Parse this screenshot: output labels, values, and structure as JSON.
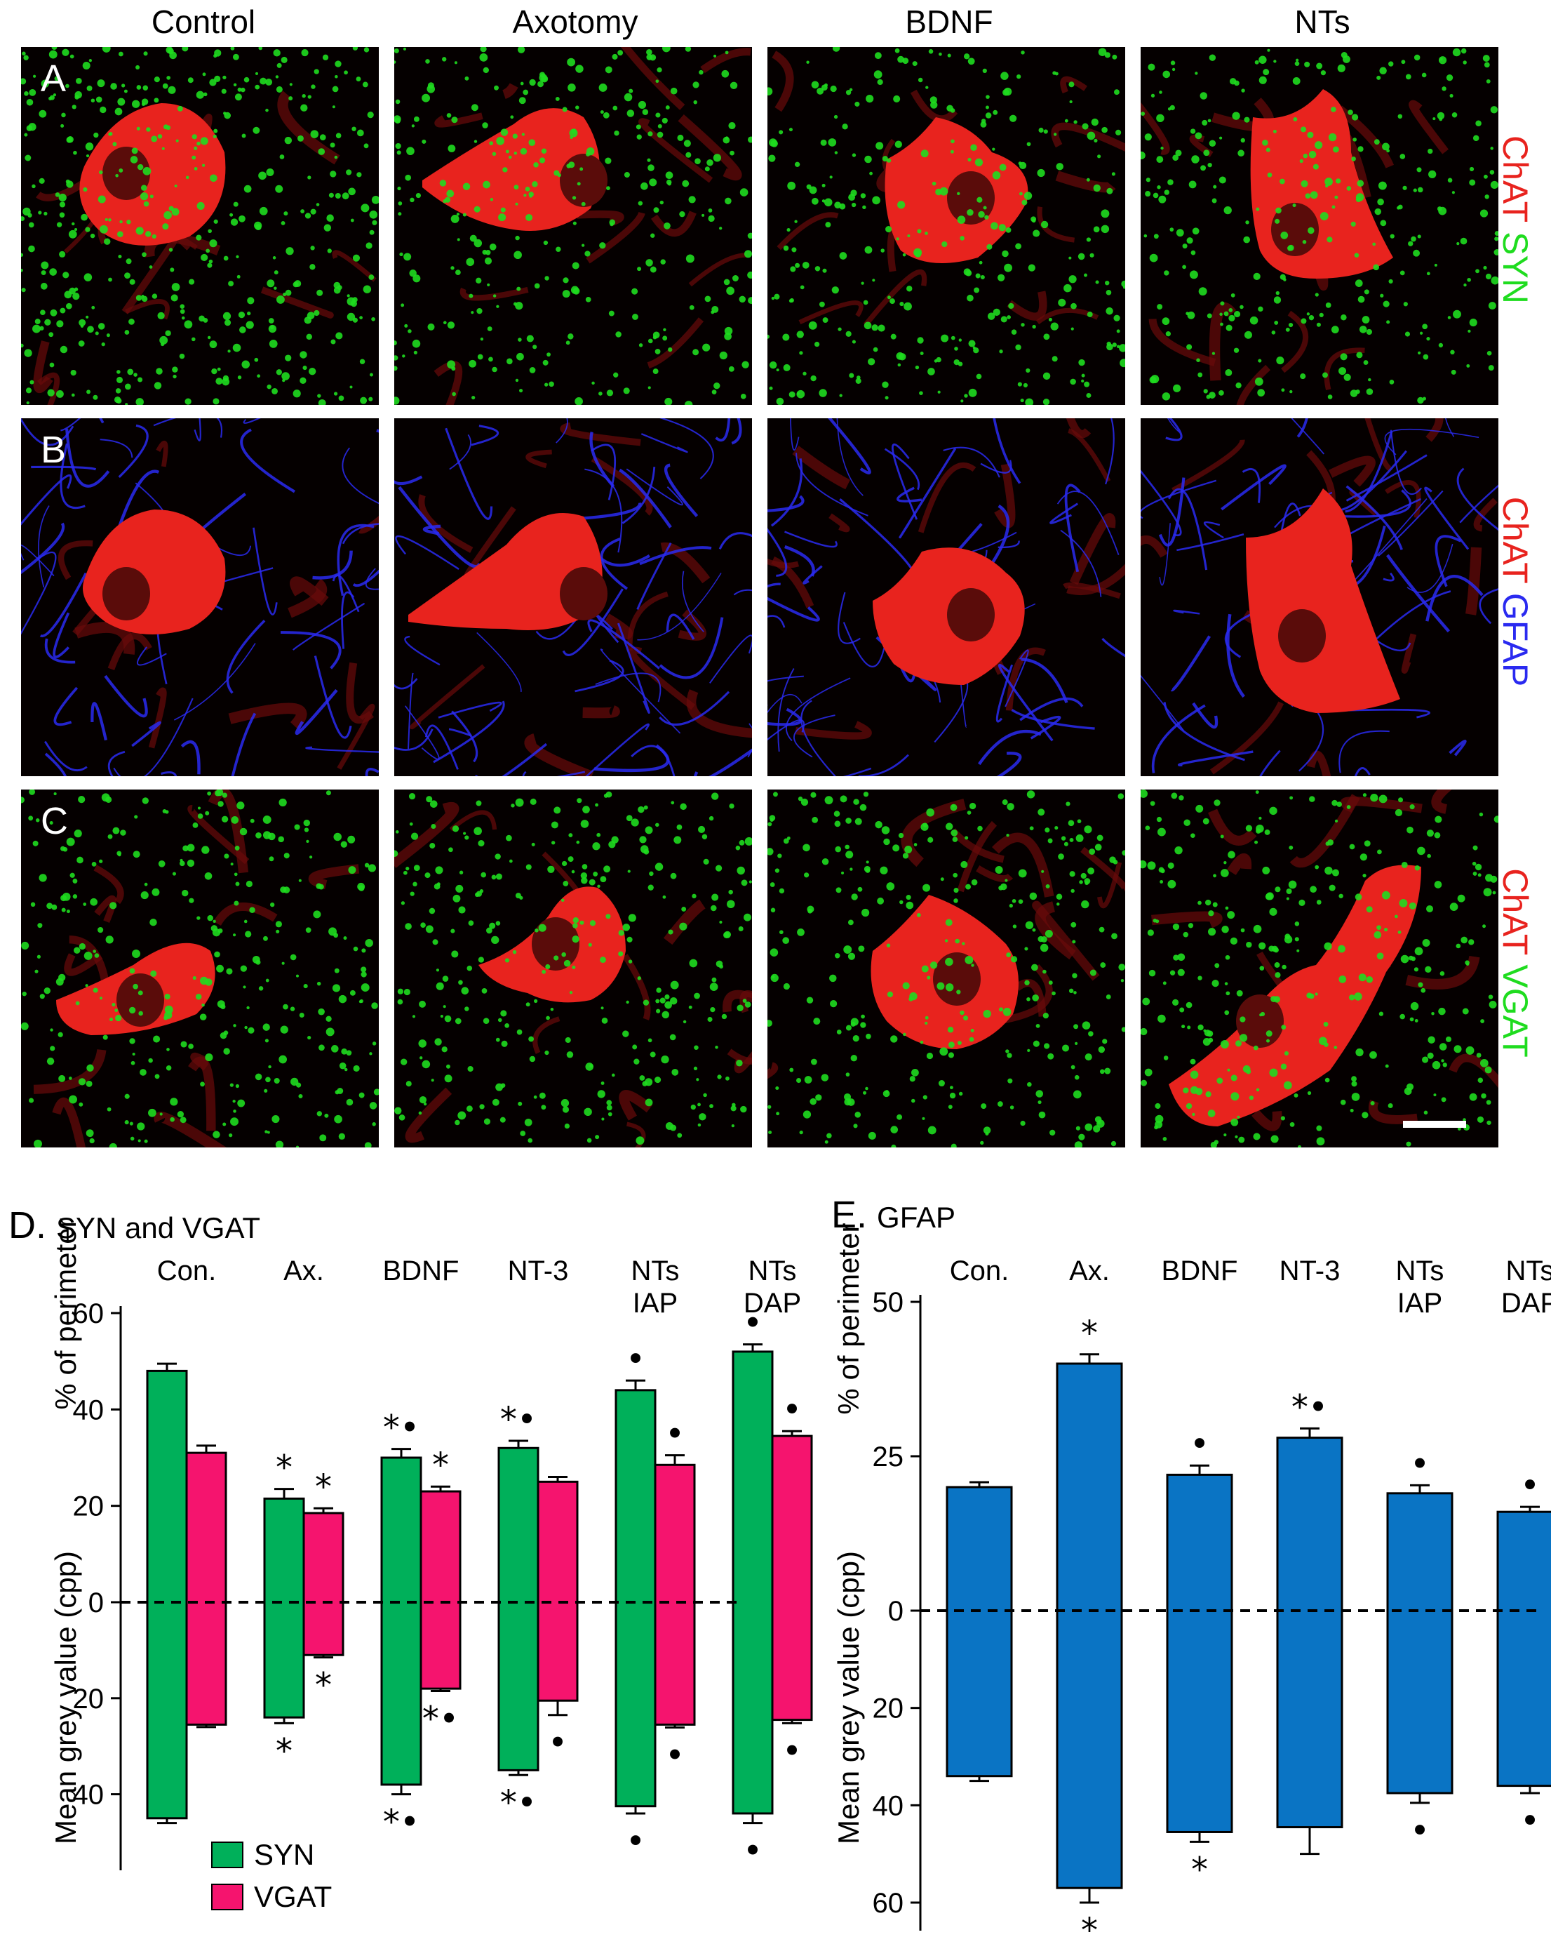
{
  "columns": [
    "Control",
    "Axotomy",
    "BDNF",
    "NTs"
  ],
  "rows": [
    {
      "letter": "A",
      "marker_primary": "ChAT",
      "marker_secondary": "SYN",
      "secondary_color": "#1fdc1f"
    },
    {
      "letter": "B",
      "marker_primary": "ChAT",
      "marker_secondary": "GFAP",
      "secondary_color": "#2a2af0"
    },
    {
      "letter": "C",
      "marker_primary": "ChAT",
      "marker_secondary": "VGAT",
      "secondary_color": "#1fdc1f"
    }
  ],
  "colors": {
    "chat_red": "#e8231e",
    "syn_green": "#00b05a",
    "vgat_pink": "#f5146e",
    "gfap_blue": "#0a74c4"
  },
  "chart_data": [
    {
      "type": "bar",
      "panel_letter": "D.",
      "title": "SYN and VGAT",
      "categories": [
        "Con.",
        "Ax.",
        "BDNF",
        "NT-3",
        "NTs\nIAP",
        "NTs\nDAP"
      ],
      "ylabel_top": "% of perimeter",
      "ylabel_bottom": "Mean grey value (cpp)",
      "ylim_top": [
        0,
        60
      ],
      "ylim_bottom": [
        0,
        50
      ],
      "yticks_top": [
        "60",
        "40",
        "20",
        "0"
      ],
      "yticks_bottom": [
        "20",
        "40"
      ],
      "legend": {
        "placement": "bottom-left",
        "entries": [
          "SYN",
          "VGAT"
        ]
      },
      "series": [
        {
          "name": "SYN",
          "top_values": [
            48,
            21.5,
            30,
            32,
            44,
            52
          ],
          "top_errors": [
            1.5,
            2,
            1.8,
            1.5,
            2,
            1.5
          ],
          "bottom_values": [
            45,
            24,
            38,
            35,
            42.5,
            44
          ],
          "bottom_errors": [
            1,
            1.2,
            2,
            1,
            1.5,
            2
          ],
          "top_markers": [
            "",
            "*",
            "*•",
            "*•",
            "•",
            "•"
          ],
          "bottom_markers": [
            "",
            "*",
            "*•",
            "*•",
            "•",
            "•"
          ]
        },
        {
          "name": "VGAT",
          "top_values": [
            31,
            18.5,
            23,
            25,
            28.5,
            34.5
          ],
          "top_errors": [
            1.5,
            1,
            1,
            1,
            2,
            1
          ],
          "bottom_values": [
            25.5,
            11,
            18,
            20.5,
            25.5,
            24.5
          ],
          "bottom_errors": [
            0.5,
            0.5,
            0.5,
            3,
            0.6,
            0.7
          ],
          "top_markers": [
            "",
            "*",
            "*",
            "",
            "•",
            "•"
          ],
          "bottom_markers": [
            "",
            "*",
            "*•",
            "•",
            "•",
            "•"
          ]
        }
      ]
    },
    {
      "type": "bar",
      "panel_letter": "E.",
      "title": "GFAP",
      "categories": [
        "Con.",
        "Ax.",
        "BDNF",
        "NT-3",
        "NTs\nIAP",
        "NTs\nDAP"
      ],
      "ylabel_top": "% of perimeter",
      "ylabel_bottom": "Mean grey value (cpp)",
      "ylim_top": [
        0,
        50
      ],
      "ylim_bottom": [
        0,
        60
      ],
      "yticks_top": [
        "50",
        "25",
        "0"
      ],
      "yticks_bottom": [
        "20",
        "40",
        "60"
      ],
      "series": [
        {
          "name": "",
          "top_values": [
            20,
            40,
            22,
            28,
            19,
            16
          ],
          "top_errors": [
            0.8,
            1.5,
            1.5,
            1.5,
            1.3,
            0.8
          ],
          "bottom_values": [
            34,
            57,
            45.5,
            44.5,
            37.5,
            36
          ],
          "bottom_errors": [
            1,
            3,
            2,
            5.5,
            2,
            1.5
          ],
          "top_markers": [
            "",
            "*",
            "•",
            "*•",
            "•",
            "•"
          ],
          "bottom_markers": [
            "",
            "*",
            "*",
            "",
            "•",
            "•"
          ]
        }
      ]
    }
  ]
}
